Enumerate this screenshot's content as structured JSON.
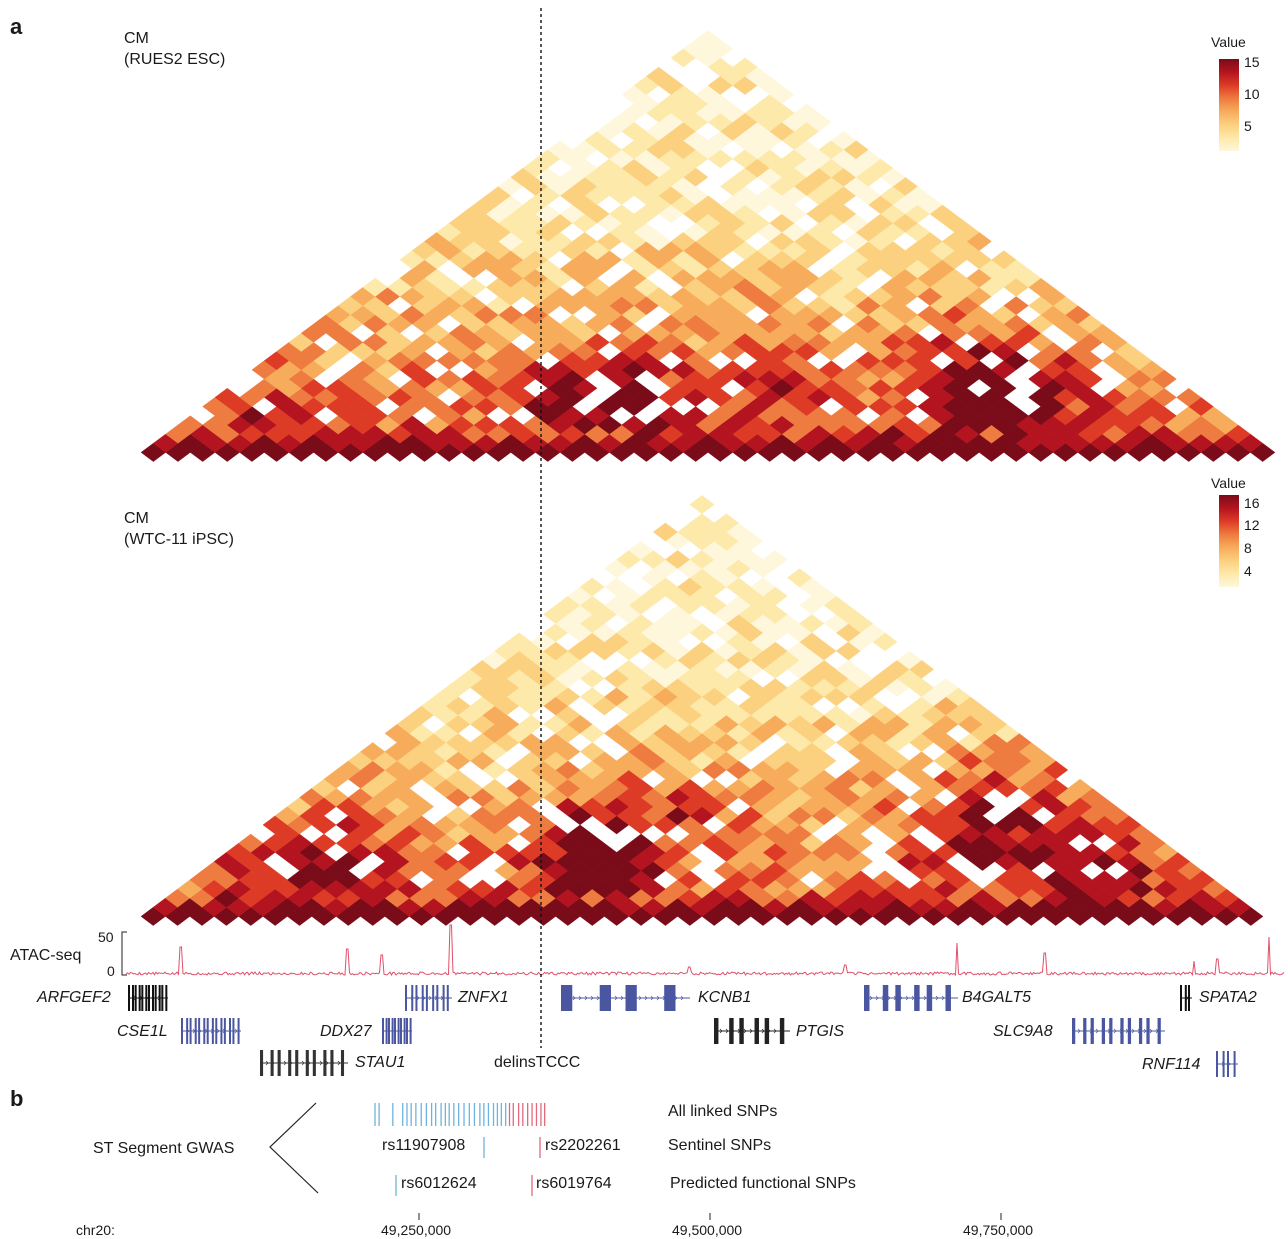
{
  "panel_a": {
    "letter": "a",
    "heatmaps": [
      {
        "condition": "CM",
        "cell_line": "(RUES2 ESC)",
        "legend_title": "Value",
        "legend_ticks": [
          "15",
          "10",
          "5"
        ],
        "seed": 17
      },
      {
        "condition": "CM",
        "cell_line": "(WTC-11 iPSC)",
        "legend_title": "Value",
        "legend_ticks": [
          "16",
          "12",
          "8",
          "4"
        ],
        "seed": 91
      }
    ],
    "colormap": [
      "#fff7dc",
      "#fde9a9",
      "#fbd07f",
      "#f7ac5c",
      "#ee7b3f",
      "#dd3b26",
      "#b4141f",
      "#7a0b19"
    ],
    "atac": {
      "label": "ATAC-seq",
      "ticks": [
        "50",
        "0"
      ],
      "color": "#e0506a"
    },
    "genes": [
      {
        "name": "ARFGEF2"
      },
      {
        "name": "CSE1L"
      },
      {
        "name": "STAU1"
      },
      {
        "name": "DDX27"
      },
      {
        "name": "ZNFX1"
      },
      {
        "name": "KCNB1"
      },
      {
        "name": "PTGIS"
      },
      {
        "name": "B4GALT5"
      },
      {
        "name": "SLC9A8"
      },
      {
        "name": "SPATA2"
      },
      {
        "name": "RNF114"
      }
    ],
    "variant_label": "delinsTCCC"
  },
  "panel_b": {
    "letter": "b",
    "gwas_label": "ST Segment GWAS",
    "rows": [
      {
        "label": "All linked SNPs"
      },
      {
        "label": "Sentinel SNPs",
        "snps": [
          "rs11907908",
          "rs2202261"
        ]
      },
      {
        "label": "Predicted functional SNPs",
        "snps": [
          "rs6012624",
          "rs6019764"
        ]
      }
    ],
    "colors": {
      "blue": "#6fb3dc",
      "red": "#e06a7c"
    }
  },
  "axis": {
    "chrom": "chr20:",
    "ticks": [
      "49,250,000",
      "49,500,000",
      "49,750,000"
    ]
  }
}
